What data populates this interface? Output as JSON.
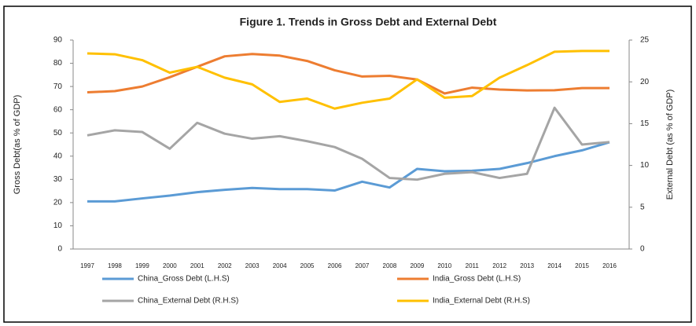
{
  "chart_data": {
    "type": "line",
    "title": "Figure 1. Trends in Gross Debt and External Debt",
    "ylabel": "Gross Debt(as % of GDP)",
    "y2label": "External Debt (as % of GDP)",
    "categories": [
      "1997",
      "1998",
      "1999",
      "2000",
      "2001",
      "2002",
      "2003",
      "2004",
      "2005",
      "2006",
      "2007",
      "2008",
      "2009",
      "2010",
      "2011",
      "2012",
      "2013",
      "2014",
      "2015",
      "2016"
    ],
    "ylim": [
      0,
      90
    ],
    "yticks": [
      0,
      10,
      20,
      30,
      40,
      50,
      60,
      70,
      80,
      90
    ],
    "y2lim": [
      0,
      25
    ],
    "y2ticks": [
      0,
      5,
      10,
      15,
      20,
      25
    ],
    "series": [
      {
        "name": "China_Gross Debt (L.H.S)",
        "color": "#5b9bd5",
        "values": [
          20.5,
          20.5,
          21.8,
          23,
          24.5,
          25.5,
          26.3,
          25.8,
          25.8,
          25.2,
          29,
          26.5,
          34.5,
          33.5,
          33.7,
          34.5,
          37,
          40,
          42.5,
          46
        ]
      },
      {
        "name": "India_Gross Debt (L.H.S)",
        "color": "#ed7d31",
        "values": [
          67.5,
          68,
          70,
          74,
          78.5,
          83,
          84,
          83.3,
          81,
          77,
          74.3,
          74.6,
          73,
          67,
          69.5,
          68.7,
          68.3,
          68.4,
          69.3,
          69.3
        ]
      },
      {
        "name": "China_External Debt (R.H.S)",
        "color": "#a5a5a5",
        "axis": "y2",
        "values": [
          13.6,
          14.2,
          14,
          12,
          15.1,
          13.8,
          13.2,
          13.5,
          12.9,
          12.2,
          10.8,
          8.5,
          8.3,
          9,
          9.2,
          8.5,
          9,
          16.9,
          12.5,
          12.8
        ]
      },
      {
        "name": "India_External Debt (R.H.S)",
        "color": "#ffc000",
        "axis": "y2",
        "values": [
          23.4,
          23.3,
          22.6,
          21.1,
          21.8,
          20.5,
          19.7,
          17.6,
          18,
          16.8,
          17.5,
          18,
          20.3,
          18.1,
          18.3,
          20.5,
          22,
          23.6,
          23.7,
          23.7
        ]
      }
    ]
  }
}
